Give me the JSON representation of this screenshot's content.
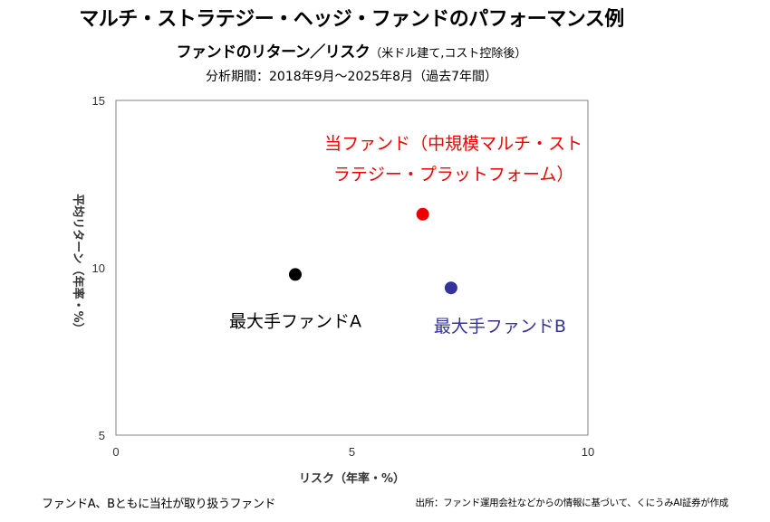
{
  "header": {
    "title": "マルチ・ストラテジー・ヘッジ・ファンドのパフォーマンス例",
    "subtitle": "ファンドのリターン／リスク",
    "subtitle_note": "（米ドル建て,コスト控除後）",
    "period": "分析期間：2018年9月～2025年8月（過去7年間）"
  },
  "footer": {
    "left_note": "ファンドA、Bともに当社が取り扱うファンド",
    "source": "出所：ファンド運用会社などからの情報に基づいて、くにうみAI証券が作成"
  },
  "chart_data": {
    "type": "scatter",
    "xlabel": "リスク（年率・%）",
    "ylabel": "平均リターン（年率・%）",
    "xlim": [
      0,
      10
    ],
    "ylim": [
      5,
      15
    ],
    "xticks": [
      "0",
      "5",
      "10"
    ],
    "yticks": [
      "5",
      "10",
      "15"
    ],
    "grid": false,
    "points": [
      {
        "label": "最大手ファンドA",
        "x": 3.8,
        "y": 9.8,
        "color": "#000000",
        "label_color": "#000000"
      },
      {
        "label": "最大手ファンドB",
        "x": 7.1,
        "y": 9.4,
        "color": "#333399",
        "label_color": "#333399"
      },
      {
        "label_lines": [
          "当ファンド（中規模マルチ・スト",
          "ラテジー・プラットフォーム）"
        ],
        "x": 6.5,
        "y": 11.6,
        "color": "#ee0000",
        "label_color": "#ee0000"
      }
    ]
  }
}
